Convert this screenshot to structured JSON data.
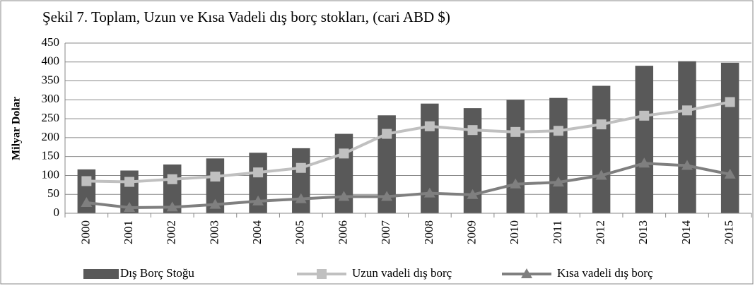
{
  "chart_data": {
    "type": "bar",
    "title": "Şekil 7. Toplam, Uzun ve Kısa Vadeli  dış borç stokları, (cari ABD $)",
    "y_label": "Milyar Dolar",
    "categories": [
      "2000",
      "2001",
      "2002",
      "2003",
      "2004",
      "2005",
      "2006",
      "2007",
      "2008",
      "2009",
      "2010",
      "2011",
      "2012",
      "2013",
      "2014",
      "2015"
    ],
    "series": [
      {
        "name": "Dış Borç Stoğu",
        "type": "bar",
        "color": "#595959",
        "values": [
          116,
          113,
          129,
          145,
          160,
          172,
          210,
          259,
          290,
          278,
          300,
          305,
          337,
          390,
          402,
          398
        ]
      },
      {
        "name": "Uzun vadeli dış borç",
        "type": "line",
        "marker": "square",
        "color": "#c0c0c0",
        "values": [
          85,
          83,
          90,
          97,
          108,
          120,
          158,
          210,
          230,
          220,
          215,
          218,
          235,
          258,
          272,
          294
        ]
      },
      {
        "name": "Kısa vadeli dış borç",
        "type": "line",
        "marker": "triangle",
        "color": "#7f7f7f",
        "values": [
          28,
          15,
          16,
          23,
          32,
          38,
          44,
          44,
          53,
          49,
          77,
          82,
          100,
          132,
          126,
          103
        ]
      }
    ],
    "ylim": [
      0,
      450
    ],
    "yticks": [
      0,
      50,
      100,
      150,
      200,
      250,
      300,
      350,
      400,
      450
    ],
    "grid": true,
    "legend": "bottom"
  }
}
